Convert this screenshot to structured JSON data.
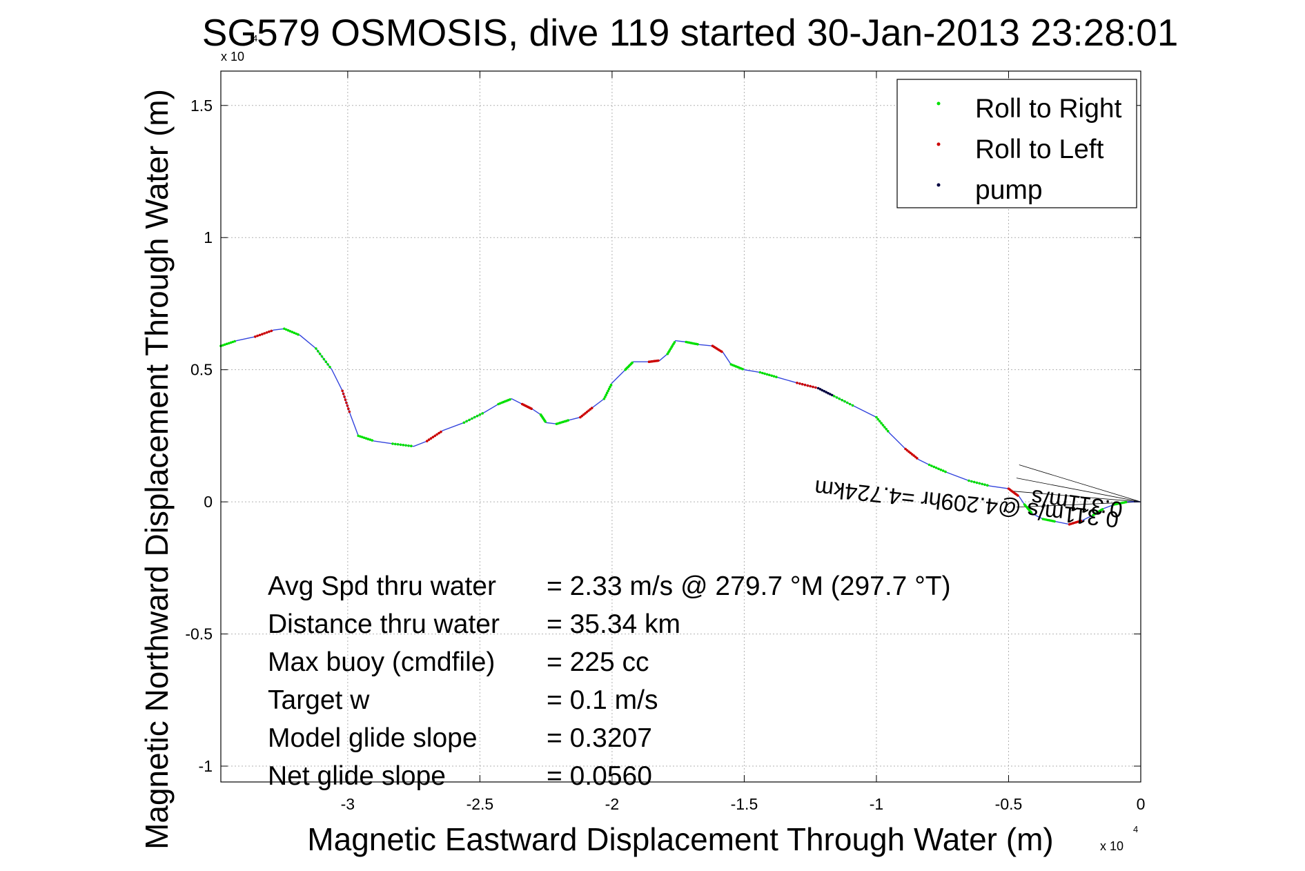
{
  "chart_data": {
    "type": "line",
    "title": "SG579 OSMOSIS, dive 119 started 30-Jan-2013 23:28:01",
    "xlabel": "Magnetic Eastward Displacement Through Water (m)",
    "ylabel": "Magnetic Northward Displacement Through Water (m)",
    "x_exponent": "x 10",
    "x_exponent_power": "4",
    "y_exponent": "x 10",
    "y_exponent_power": "4",
    "xlim": [
      -3.48,
      0
    ],
    "ylim": [
      -1.06,
      1.63
    ],
    "x_ticks": [
      {
        "v": -3,
        "label": "-3"
      },
      {
        "v": -2.5,
        "label": "-2.5"
      },
      {
        "v": -2,
        "label": "-2"
      },
      {
        "v": -1.5,
        "label": "-1.5"
      },
      {
        "v": -1,
        "label": "-1"
      },
      {
        "v": -0.5,
        "label": "-0.5"
      },
      {
        "v": 0,
        "label": "0"
      }
    ],
    "y_ticks": [
      {
        "v": -1,
        "label": "-1"
      },
      {
        "v": -0.5,
        "label": "-0.5"
      },
      {
        "v": 0,
        "label": "0"
      },
      {
        "v": 0.5,
        "label": "0.5"
      },
      {
        "v": 1,
        "label": "1"
      },
      {
        "v": 1.5,
        "label": "1.5"
      }
    ],
    "grid": true,
    "legend_position": "top-right",
    "legend": [
      {
        "label": "Roll to Right",
        "color": "#00e000"
      },
      {
        "label": "Roll to Left",
        "color": "#cc0000"
      },
      {
        "label": "pump",
        "color": "#000040"
      }
    ],
    "track_color": "#3344dd",
    "track": [
      [
        -3.48,
        0.59
      ],
      [
        -3.42,
        0.61
      ],
      [
        -3.35,
        0.625
      ],
      [
        -3.28,
        0.65
      ],
      [
        -3.24,
        0.655
      ],
      [
        -3.18,
        0.63
      ],
      [
        -3.12,
        0.58
      ],
      [
        -3.06,
        0.5
      ],
      [
        -3.02,
        0.42
      ],
      [
        -2.99,
        0.33
      ],
      [
        -2.96,
        0.25
      ],
      [
        -2.9,
        0.23
      ],
      [
        -2.83,
        0.22
      ],
      [
        -2.75,
        0.21
      ],
      [
        -2.7,
        0.23
      ],
      [
        -2.64,
        0.27
      ],
      [
        -2.56,
        0.3
      ],
      [
        -2.48,
        0.34
      ],
      [
        -2.43,
        0.37
      ],
      [
        -2.38,
        0.39
      ],
      [
        -2.34,
        0.37
      ],
      [
        -2.3,
        0.35
      ],
      [
        -2.27,
        0.33
      ],
      [
        -2.25,
        0.3
      ],
      [
        -2.21,
        0.295
      ],
      [
        -2.16,
        0.31
      ],
      [
        -2.12,
        0.32
      ],
      [
        -2.07,
        0.36
      ],
      [
        -2.03,
        0.39
      ],
      [
        -2.0,
        0.45
      ],
      [
        -1.95,
        0.5
      ],
      [
        -1.92,
        0.53
      ],
      [
        -1.86,
        0.53
      ],
      [
        -1.82,
        0.535
      ],
      [
        -1.79,
        0.56
      ],
      [
        -1.76,
        0.61
      ],
      [
        -1.72,
        0.605
      ],
      [
        -1.67,
        0.595
      ],
      [
        -1.62,
        0.59
      ],
      [
        -1.58,
        0.565
      ],
      [
        -1.55,
        0.52
      ],
      [
        -1.5,
        0.5
      ],
      [
        -1.44,
        0.49
      ],
      [
        -1.37,
        0.47
      ],
      [
        -1.3,
        0.45
      ],
      [
        -1.22,
        0.43
      ],
      [
        -1.16,
        0.4
      ],
      [
        -1.08,
        0.36
      ],
      [
        -1.0,
        0.32
      ],
      [
        -0.95,
        0.26
      ],
      [
        -0.89,
        0.2
      ],
      [
        -0.84,
        0.16
      ],
      [
        -0.8,
        0.14
      ],
      [
        -0.73,
        0.11
      ],
      [
        -0.65,
        0.08
      ],
      [
        -0.57,
        0.06
      ],
      [
        -0.5,
        0.05
      ],
      [
        -0.46,
        0.02
      ],
      [
        -0.44,
        -0.01
      ],
      [
        -0.41,
        -0.045
      ],
      [
        -0.37,
        -0.065
      ],
      [
        -0.32,
        -0.075
      ],
      [
        -0.27,
        -0.085
      ],
      [
        -0.22,
        -0.07
      ],
      [
        -0.18,
        -0.05
      ],
      [
        -0.14,
        -0.025
      ],
      [
        -0.1,
        -0.01
      ],
      [
        -0.05,
        0.0
      ],
      [
        0.0,
        0.0
      ]
    ],
    "depth_avg_lines": [
      {
        "from": [
          0.0,
          0.0
        ],
        "to": [
          -0.46,
          0.14
        ]
      },
      {
        "from": [
          0.0,
          0.0
        ],
        "to": [
          -0.47,
          0.09
        ]
      },
      {
        "from": [
          0.0,
          0.0
        ],
        "to": [
          -0.48,
          0.04
        ]
      },
      {
        "from": [
          0.0,
          0.0
        ],
        "to": [
          -0.47,
          -0.02
        ]
      }
    ],
    "annotation_rotated": "0.311m/s @4.209hr =4.724km",
    "annotation_rotated_2": "0.311m/s",
    "stats": [
      {
        "label": "Avg Spd thru water",
        "value": "=  2.33 m/s @ 279.7 °M (297.7 °T)"
      },
      {
        "label": "Distance thru water",
        "value": "= 35.34 km"
      },
      {
        "label": "Max buoy (cmdfile)",
        "value": "= 225 cc"
      },
      {
        "label": "Target w",
        "value": "= 0.1 m/s"
      },
      {
        "label": "Model glide slope",
        "value": "= 0.3207"
      },
      {
        "label": "Net glide slope",
        "value": "= 0.0560"
      }
    ]
  }
}
